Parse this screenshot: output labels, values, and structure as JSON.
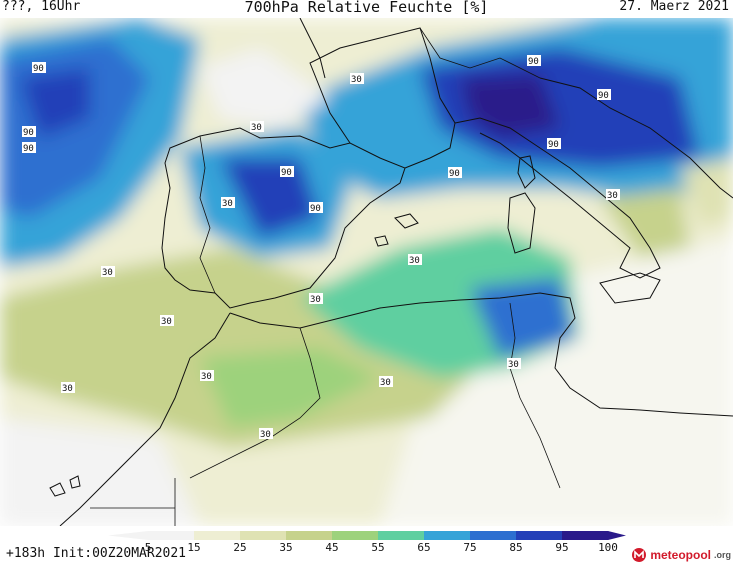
{
  "header": {
    "left": "???, 16Uhr",
    "title": "700hPa Relative Feuchte [%]",
    "date": "27. Maerz 2021"
  },
  "footer": {
    "run_info": "+183h Init:00Z20MAR2021",
    "logo_text": "meteopool",
    "logo_tld": ".org"
  },
  "colors": {
    "low": "#f3f3f3",
    "c15": "#eeeed3",
    "c25": "#dfe2b3",
    "c35": "#c6d28c",
    "c45": "#9dd27c",
    "c55": "#5fcfa0",
    "c65": "#35a3d8",
    "c75": "#2d6fd0",
    "c85": "#2440b8",
    "c95": "#2a1a8a",
    "coast": "#111111"
  },
  "legend": {
    "ticks": [
      "5",
      "15",
      "25",
      "35",
      "45",
      "55",
      "65",
      "75",
      "85",
      "95",
      "100"
    ],
    "colors": [
      "#f3f3f3",
      "#eeeed3",
      "#dfe2b3",
      "#c6d28c",
      "#9dd27c",
      "#5fcfa0",
      "#35a3d8",
      "#2d6fd0",
      "#2440b8",
      "#2a1a8a"
    ]
  },
  "contour_labels": [
    "90",
    "90",
    "90",
    "30",
    "30",
    "90",
    "90",
    "90",
    "90",
    "90",
    "90",
    "30",
    "30",
    "30",
    "30",
    "30",
    "30",
    "30",
    "30",
    "30",
    "30",
    "30"
  ]
}
